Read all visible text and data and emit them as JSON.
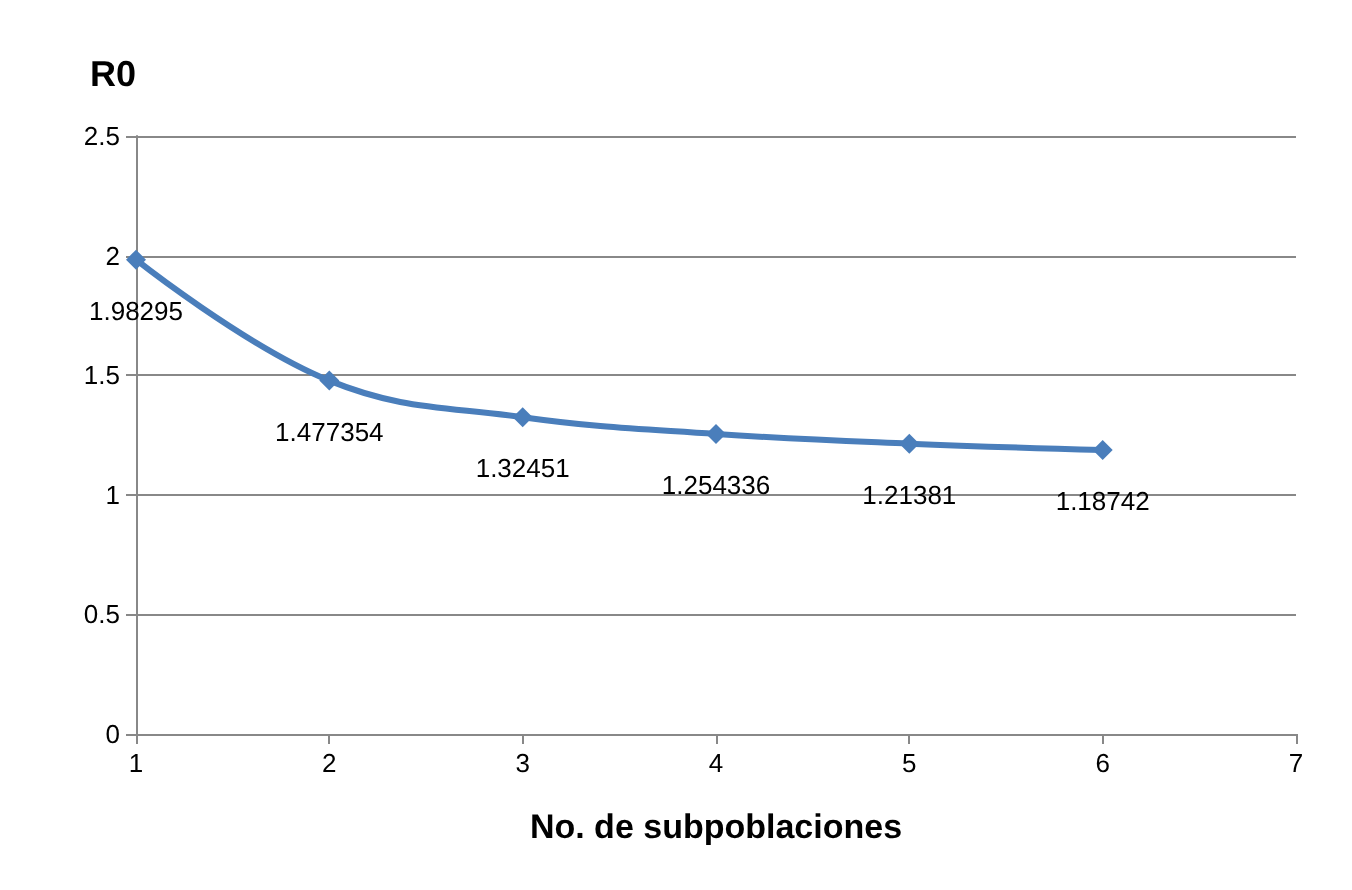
{
  "chart_data": {
    "type": "line",
    "ylabel": "R0",
    "xlabel": "No. de subpoblaciones",
    "x": [
      1,
      2,
      3,
      4,
      5,
      6
    ],
    "series": [
      {
        "color": "#4a7ebb",
        "values": [
          1.98295,
          1.477354,
          1.32451,
          1.254336,
          1.21381,
          1.18742
        ]
      }
    ],
    "xlim": [
      1,
      7
    ],
    "xticks": [
      1,
      2,
      3,
      4,
      5,
      6,
      7
    ],
    "ylim": [
      0,
      2.5
    ],
    "yticks": [
      0,
      0.5,
      1,
      1.5,
      2,
      2.5
    ],
    "grid": "y",
    "marker": "diamond",
    "data_labels": true
  }
}
